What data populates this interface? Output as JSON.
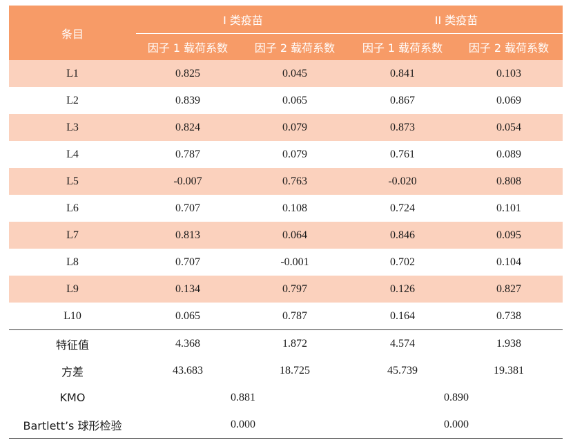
{
  "table": {
    "header": {
      "item_col": "条目",
      "group1": "I 类疫苗",
      "group2": "II 类疫苗",
      "sub": [
        "因子 1 载荷系数",
        "因子 2 载荷系数",
        "因子 1 载荷系数",
        "因子 2 载荷系数"
      ]
    },
    "rows": [
      {
        "item": "L1",
        "g1f1": "0.825",
        "g1f2": "0.045",
        "g2f1": "0.841",
        "g2f2": "0.103"
      },
      {
        "item": "L2",
        "g1f1": "0.839",
        "g1f2": "0.065",
        "g2f1": "0.867",
        "g2f2": "0.069"
      },
      {
        "item": "L3",
        "g1f1": "0.824",
        "g1f2": "0.079",
        "g2f1": "0.873",
        "g2f2": "0.054"
      },
      {
        "item": "L4",
        "g1f1": "0.787",
        "g1f2": "0.079",
        "g2f1": "0.761",
        "g2f2": "0.089"
      },
      {
        "item": "L5",
        "g1f1": "-0.007",
        "g1f2": "0.763",
        "g2f1": "-0.020",
        "g2f2": "0.808"
      },
      {
        "item": "L6",
        "g1f1": "0.707",
        "g1f2": "0.108",
        "g2f1": "0.724",
        "g2f2": "0.101"
      },
      {
        "item": "L7",
        "g1f1": "0.813",
        "g1f2": "0.064",
        "g2f1": "0.846",
        "g2f2": "0.095"
      },
      {
        "item": "L8",
        "g1f1": "0.707",
        "g1f2": "-0.001",
        "g2f1": "0.702",
        "g2f2": "0.104"
      },
      {
        "item": "L9",
        "g1f1": "0.134",
        "g1f2": "0.797",
        "g2f1": "0.126",
        "g2f2": "0.827"
      },
      {
        "item": "L10",
        "g1f1": "0.065",
        "g1f2": "0.787",
        "g2f1": "0.164",
        "g2f2": "0.738"
      }
    ],
    "eigen": {
      "label": "特征值",
      "g1f1": "4.368",
      "g1f2": "1.872",
      "g2f1": "4.574",
      "g2f2": "1.938"
    },
    "variance": {
      "label": "方差",
      "g1f1": "43.683",
      "g1f2": "18.725",
      "g2f1": "45.739",
      "g2f2": "19.381"
    },
    "kmo": {
      "label": "KMO",
      "g1": "0.881",
      "g2": "0.890"
    },
    "bartlett": {
      "label": "Bartlett’s 球形检验",
      "g1": "0.000",
      "g2": "0.000"
    }
  },
  "colors": {
    "header_bg": "#f79b67",
    "row_shade": "#fbd1bd"
  }
}
